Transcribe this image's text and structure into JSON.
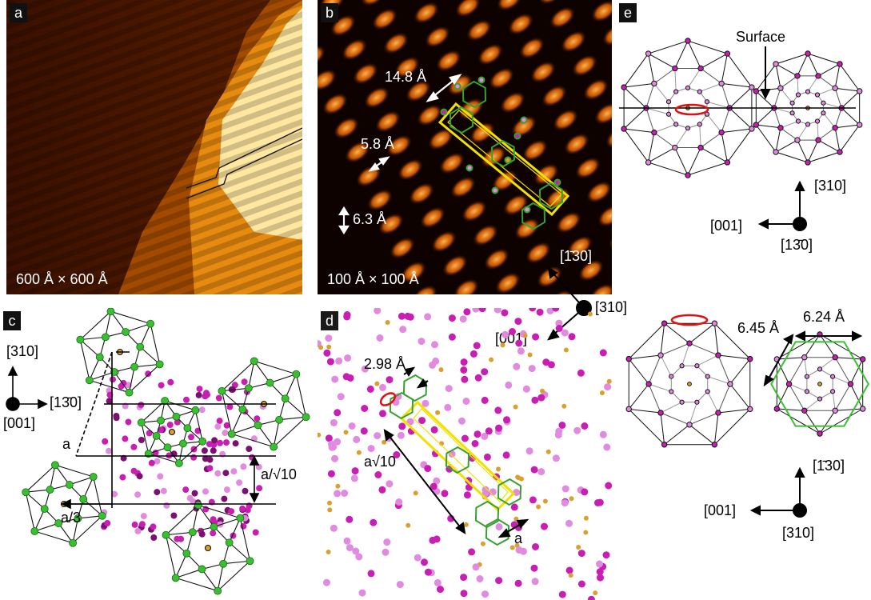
{
  "panels": {
    "a": {
      "letter": "a",
      "scale": "600 Å × 600 Å"
    },
    "b": {
      "letter": "b",
      "scale": "100 Å × 100 Å",
      "d1": "14.8 Å",
      "d2": "5.8 Å",
      "d3": "6.3 Å",
      "dir_130": "[1̄30]",
      "dir_310": "[310]",
      "dir_001": "[001]"
    },
    "c": {
      "letter": "c",
      "dir_310": "[310]",
      "dir_130": "[13̄0]",
      "dir_001": "[001]",
      "a": "a",
      "a3": "a/3",
      "asqrt": "a/√10"
    },
    "d": {
      "letter": "d",
      "d1": "2.98 Å",
      "asqrt": "a√10",
      "a": "a"
    },
    "e": {
      "letter": "e",
      "surface": "Surface",
      "dir_310_top": "[310]",
      "dir_001_top": "[001]",
      "dir_130_top": "[13̄0]",
      "d1": "6.45 Å",
      "d2": "6.24 Å",
      "dir_130_bot": "[1̄30]",
      "dir_001_bot": "[001]",
      "dir_310_bot": "[310]"
    }
  },
  "colors": {
    "magenta": "#c81eb4",
    "pink": "#e08ae0",
    "gold": "#d9a030",
    "green": "#39c030",
    "yellow": "#f2e000",
    "red": "#e01010"
  }
}
